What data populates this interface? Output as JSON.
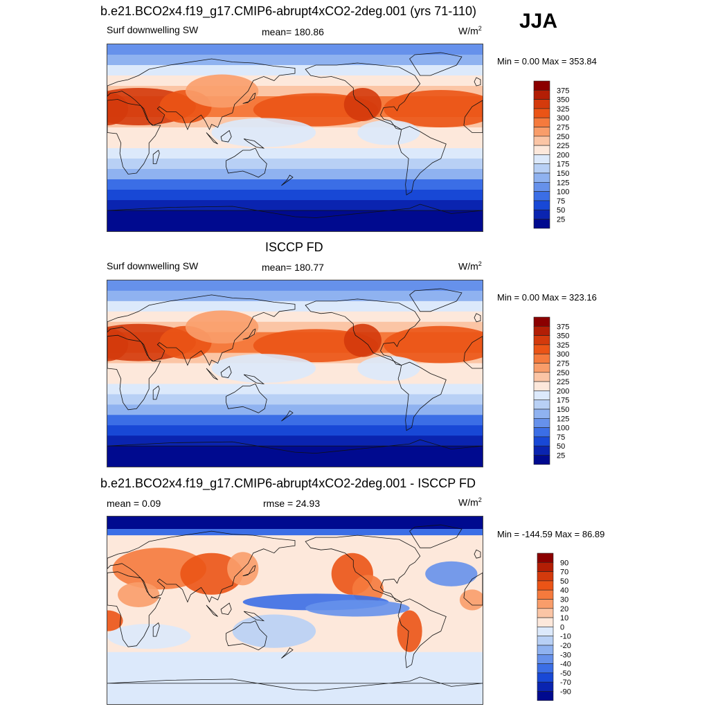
{
  "season": "JJA",
  "panels": [
    {
      "title": "b.e21.BCO2x4.f19_g17.CMIP6-abrupt4xCO2-2deg.001 (yrs 71-110)",
      "left": "Surf downwelling SW",
      "center": "mean= 180.86",
      "units": "W/m",
      "units_sup": "2",
      "minmax": "Min =   0.00 Max = 353.84",
      "scale": "abs",
      "colorbar_labels": [
        "375",
        "350",
        "325",
        "300",
        "275",
        "250",
        "225",
        "200",
        "175",
        "150",
        "125",
        "100",
        "75",
        "50",
        "25"
      ]
    },
    {
      "title": "ISCCP FD",
      "left": "Surf downwelling SW",
      "center": "mean= 180.77",
      "units": "W/m",
      "units_sup": "2",
      "minmax": "Min =   0.00 Max = 323.16",
      "scale": "abs",
      "colorbar_labels": [
        "375",
        "350",
        "325",
        "300",
        "275",
        "250",
        "225",
        "200",
        "175",
        "150",
        "125",
        "100",
        "75",
        "50",
        "25"
      ]
    },
    {
      "title": "b.e21.BCO2x4.f19_g17.CMIP6-abrupt4xCO2-2deg.001 - ISCCP FD",
      "left": "mean =   0.09",
      "center": "rmse =  24.93",
      "units": "W/m",
      "units_sup": "2",
      "minmax": "Min = -144.59 Max =  86.89",
      "scale": "diff",
      "colorbar_labels": [
        "90",
        "70",
        "50",
        "40",
        "30",
        "20",
        "10",
        "0",
        "-10",
        "-20",
        "-30",
        "-40",
        "-50",
        "-70",
        "-90"
      ]
    }
  ],
  "colors": {
    "abs": [
      "#8b0000",
      "#b31e05",
      "#d43a0c",
      "#eb5416",
      "#f57a3d",
      "#f99d6a",
      "#fbc5a5",
      "#fde8db",
      "#dce9fb",
      "#b8d0f5",
      "#8fb2f0",
      "#6691eb",
      "#3b6ee6",
      "#1848d6",
      "#0a24b0",
      "#000a8f"
    ],
    "diff": [
      "#8b0000",
      "#b31e05",
      "#d43a0c",
      "#eb5416",
      "#f57a3d",
      "#f99d6a",
      "#fbc5a5",
      "#fde8db",
      "#dce9fb",
      "#b8d0f5",
      "#8fb2f0",
      "#6691eb",
      "#3b6ee6",
      "#1848d6",
      "#0a24b0",
      "#000a8f"
    ]
  },
  "chart_data": [
    {
      "type": "heatmap",
      "title": "b.e21.BCO2x4.f19_g17.CMIP6-abrupt4xCO2-2deg.001 (yrs 71-110)",
      "variable": "Surf downwelling SW",
      "units": "W/m2",
      "season": "JJA",
      "mean": 180.86,
      "min": 0.0,
      "max": 353.84,
      "levels": [
        25,
        50,
        75,
        100,
        125,
        150,
        175,
        200,
        225,
        250,
        275,
        300,
        325,
        350,
        375
      ]
    },
    {
      "type": "heatmap",
      "title": "ISCCP FD",
      "variable": "Surf downwelling SW",
      "units": "W/m2",
      "season": "JJA",
      "mean": 180.77,
      "min": 0.0,
      "max": 323.16,
      "levels": [
        25,
        50,
        75,
        100,
        125,
        150,
        175,
        200,
        225,
        250,
        275,
        300,
        325,
        350,
        375
      ]
    },
    {
      "type": "heatmap",
      "title": "b.e21.BCO2x4.f19_g17.CMIP6-abrupt4xCO2-2deg.001 - ISCCP FD",
      "units": "W/m2",
      "season": "JJA",
      "mean": 0.09,
      "rmse": 24.93,
      "min": -144.59,
      "max": 86.89,
      "levels": [
        -90,
        -70,
        -50,
        -40,
        -30,
        -20,
        -10,
        0,
        10,
        20,
        30,
        40,
        50,
        70,
        90
      ]
    }
  ]
}
